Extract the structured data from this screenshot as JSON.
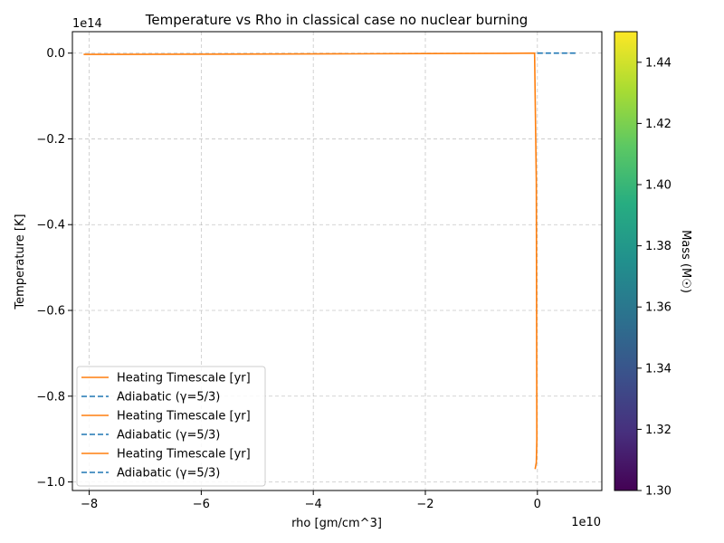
{
  "chart_data": {
    "type": "line",
    "title": "Temperature vs Rho in classical case no nuclear burning",
    "xlabel": "rho [gm/cm^3]",
    "ylabel": "Temperature [K]",
    "x_offset_label": "1e10",
    "y_offset_label": "1e14",
    "xlim": [
      -8.3,
      1.15
    ],
    "ylim": [
      -1.02,
      0.05
    ],
    "x_ticks": [
      -8,
      -6,
      -4,
      -2,
      0
    ],
    "x_tick_labels": [
      "−8",
      "−6",
      "−4",
      "−2",
      "0"
    ],
    "y_ticks": [
      0.0,
      -0.2,
      -0.4,
      -0.6,
      -0.8,
      -1.0
    ],
    "y_tick_labels": [
      "0.0",
      "−0.2",
      "−0.4",
      "−0.6",
      "−0.8",
      "−1.0"
    ],
    "grid": true,
    "legend_position": "lower-left",
    "series": [
      {
        "name": "Heating Timescale [yr]",
        "color": "#ff7f0e",
        "style": "solid",
        "x": [
          -8.1,
          -4.0,
          -2.0,
          -0.5,
          -0.05,
          -0.02,
          -0.01,
          -0.02,
          -0.04
        ],
        "y": [
          -0.003,
          -0.002,
          -0.001,
          -0.0005,
          0.0,
          -0.3,
          -0.9,
          -0.955,
          -0.97
        ]
      },
      {
        "name": "Adiabatic (γ=5/3)",
        "color": "#1f77b4",
        "style": "dashed",
        "x": [
          0.0,
          0.5,
          0.72
        ],
        "y": [
          0.0,
          0.0,
          0.0
        ]
      }
    ],
    "legend_entries": [
      {
        "label": "Heating Timescale [yr]",
        "color": "#ff7f0e",
        "style": "solid"
      },
      {
        "label": "Adiabatic (γ=5/3)",
        "color": "#1f77b4",
        "style": "dashed"
      },
      {
        "label": "Heating Timescale [yr]",
        "color": "#ff7f0e",
        "style": "solid"
      },
      {
        "label": "Adiabatic (γ=5/3)",
        "color": "#1f77b4",
        "style": "dashed"
      },
      {
        "label": "Heating Timescale [yr]",
        "color": "#ff7f0e",
        "style": "solid"
      },
      {
        "label": "Adiabatic (γ=5/3)",
        "color": "#1f77b4",
        "style": "dashed"
      }
    ],
    "colorbar": {
      "label": "Mass (M☉)",
      "colormap": "viridis",
      "range": [
        1.3,
        1.45
      ],
      "ticks": [
        1.3,
        1.32,
        1.34,
        1.36,
        1.38,
        1.4,
        1.42,
        1.44
      ],
      "tick_labels": [
        "1.30",
        "1.32",
        "1.34",
        "1.36",
        "1.38",
        "1.40",
        "1.42",
        "1.44"
      ]
    }
  }
}
